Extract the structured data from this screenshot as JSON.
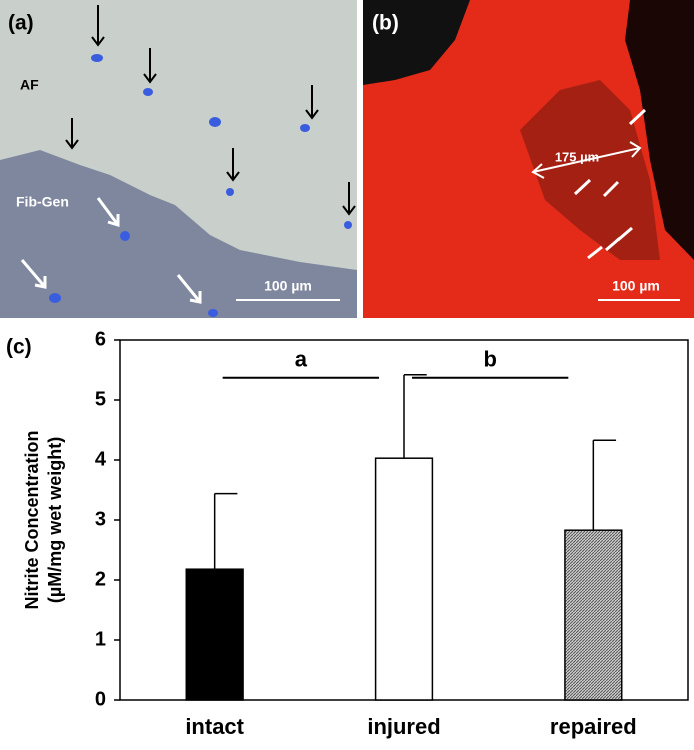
{
  "panels": {
    "a": {
      "label": "(a)",
      "region_1": "AF",
      "region_2": "Fib-Gen",
      "scale_bar": "100 µm"
    },
    "b": {
      "label": "(b)",
      "measure": "175 µm",
      "scale_bar": "100 µm"
    }
  },
  "chart_data": {
    "type": "bar",
    "panel_label": "(c)",
    "y_label": [
      "Nitrite Concentration",
      "(µM/mg wet weight)"
    ],
    "categories": [
      "intact",
      "injured",
      "repaired"
    ],
    "values": [
      2.18,
      4.03,
      2.83
    ],
    "errors": [
      1.26,
      1.39,
      1.5
    ],
    "colors": [
      "#000000",
      "#ffffff",
      "#a6a6a6"
    ],
    "annotations": [
      "a",
      "b"
    ],
    "ylim": [
      0,
      6
    ],
    "yticks": [
      0,
      1,
      2,
      3,
      4,
      5,
      6
    ],
    "grid": false
  }
}
